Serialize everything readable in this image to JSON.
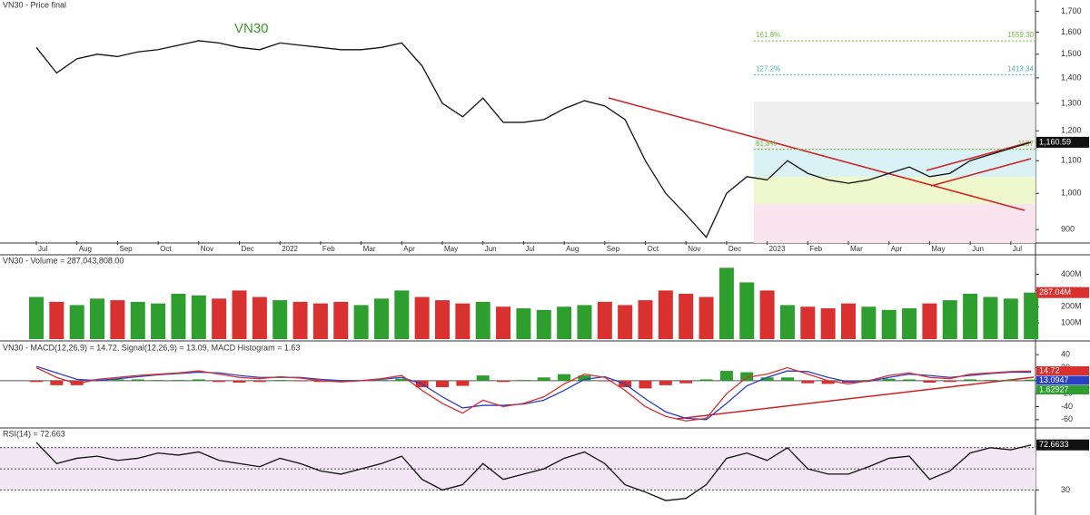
{
  "chart_data": [
    {
      "type": "line",
      "title": "VN30 - Price final",
      "annotation": "VN30",
      "log_scale": true,
      "color": "#111111",
      "categories": [
        "Jul",
        null,
        "Aug",
        null,
        "Sep",
        null,
        "Oct",
        null,
        "Nov",
        null,
        "Dec",
        null,
        "2022",
        null,
        "Feb",
        null,
        "Mar",
        null,
        "Apr",
        null,
        "May",
        null,
        "Jun",
        null,
        "Jul",
        null,
        "Aug",
        null,
        "Sep",
        null,
        "Oct",
        null,
        "Nov",
        null,
        "Dec",
        null,
        "2023",
        null,
        "Feb",
        null,
        "Mar",
        null,
        "Apr",
        null,
        "May",
        null,
        "Jun",
        null,
        "Jul",
        null
      ],
      "values": [
        1530,
        1420,
        1480,
        1500,
        1490,
        1510,
        1520,
        1540,
        1560,
        1550,
        1530,
        1520,
        1550,
        1540,
        1530,
        1520,
        1520,
        1530,
        1550,
        1450,
        1300,
        1250,
        1320,
        1230,
        1230,
        1240,
        1280,
        1310,
        1290,
        1240,
        1100,
        1000,
        940,
        880,
        1000,
        1050,
        1040,
        1100,
        1060,
        1040,
        1030,
        1040,
        1060,
        1080,
        1050,
        1060,
        1100,
        1120,
        1140,
        1160.59
      ],
      "ylim": [
        870,
        1720
      ],
      "yticks": [
        {
          "value": 900,
          "label": "900"
        },
        {
          "value": 1000,
          "label": "1,000"
        },
        {
          "value": 1100,
          "label": "1,100"
        },
        {
          "value": 1200,
          "label": "1,200"
        },
        {
          "value": 1300,
          "label": "1,300"
        },
        {
          "value": 1400,
          "label": "1,400"
        },
        {
          "value": 1500,
          "label": "1,500"
        },
        {
          "value": 1600,
          "label": "1,600"
        },
        {
          "value": 1700,
          "label": "1,700"
        }
      ],
      "last_label": {
        "value": 1160.59,
        "label": "1,160.59"
      },
      "fib_levels": [
        {
          "label": "161.8%",
          "value": 1559.3,
          "value_label": "1559.30",
          "color": "#6fbf3f"
        },
        {
          "label": "127.2%",
          "value": 1413.34,
          "value_label": "1413.34",
          "color": "#4fb8c8"
        },
        {
          "label": "61.8%",
          "value": 1137,
          "value_label": "1137",
          "color": "#6fbf3f"
        }
      ]
    },
    {
      "type": "bar",
      "title": "VN30 - Volume = 287,043,808.00",
      "up_color": "#2e9e2e",
      "down_color": "#d93030",
      "values": [
        260000000,
        230000000,
        210000000,
        250000000,
        240000000,
        230000000,
        220000000,
        280000000,
        270000000,
        250000000,
        300000000,
        260000000,
        240000000,
        230000000,
        220000000,
        230000000,
        210000000,
        250000000,
        300000000,
        260000000,
        240000000,
        220000000,
        230000000,
        200000000,
        190000000,
        180000000,
        200000000,
        210000000,
        230000000,
        210000000,
        240000000,
        300000000,
        280000000,
        260000000,
        440000000,
        350000000,
        300000000,
        210000000,
        200000000,
        190000000,
        220000000,
        200000000,
        180000000,
        190000000,
        220000000,
        240000000,
        280000000,
        260000000,
        250000000,
        287043808
      ],
      "ylim": [
        0,
        470000000
      ],
      "yticks": [
        {
          "value": 100000000,
          "label": "100M"
        },
        {
          "value": 200000000,
          "label": "200M"
        },
        {
          "value": 300000000,
          "label": "300M"
        },
        {
          "value": 400000000,
          "label": "400M"
        }
      ],
      "last_label": {
        "value": 287043808,
        "label": "287.04M"
      }
    },
    {
      "type": "macd",
      "title": "VN30 - MACD(12,26,9) = 14.72, Signal(12,26,9) = 13.09, MACD Histogram = 1.63",
      "series": [
        {
          "name": "MACD",
          "color": "#d93030",
          "values": [
            20,
            5,
            -5,
            2,
            5,
            8,
            10,
            12,
            15,
            10,
            5,
            3,
            6,
            4,
            0,
            -2,
            0,
            3,
            8,
            -15,
            -35,
            -50,
            -30,
            -40,
            -35,
            -25,
            -5,
            10,
            5,
            -15,
            -40,
            -55,
            -62,
            -58,
            -20,
            5,
            10,
            20,
            10,
            0,
            -5,
            0,
            8,
            12,
            5,
            3,
            10,
            12,
            14,
            14.72
          ]
        },
        {
          "name": "Signal",
          "color": "#2a3fc4",
          "values": [
            22,
            12,
            2,
            0,
            3,
            6,
            9,
            11,
            13,
            12,
            8,
            5,
            5,
            5,
            2,
            0,
            0,
            2,
            5,
            -5,
            -25,
            -42,
            -38,
            -38,
            -36,
            -30,
            -15,
            2,
            6,
            -5,
            -28,
            -48,
            -58,
            -60,
            -35,
            -8,
            5,
            15,
            14,
            5,
            -2,
            -1,
            5,
            10,
            8,
            5,
            8,
            11,
            13,
            13.09
          ]
        },
        {
          "name": "MACD Histogram",
          "color": "#2e9e2e",
          "down_color": "#d93030",
          "values": [
            -2,
            -7,
            -7,
            2,
            2,
            2,
            1,
            1,
            2,
            -2,
            -3,
            -2,
            1,
            -1,
            -2,
            -2,
            0,
            1,
            3,
            -10,
            -10,
            -8,
            8,
            -2,
            1,
            5,
            10,
            8,
            -1,
            -10,
            -12,
            -7,
            -4,
            2,
            15,
            13,
            5,
            5,
            -4,
            -5,
            -3,
            1,
            3,
            2,
            -3,
            -2,
            2,
            1,
            1,
            1.63
          ]
        }
      ],
      "ylim": [
        -70,
        50
      ],
      "yticks": [
        -60,
        -40,
        -20,
        0,
        20,
        40
      ],
      "last_labels": [
        {
          "value": 14.72,
          "label": "14.72",
          "color": "#d93030"
        },
        {
          "value": 13.0947,
          "label": "13.0947",
          "color": "#2a3fc4"
        },
        {
          "value": 1.62927,
          "label": "1.62927",
          "color": "#2e9e2e"
        }
      ]
    },
    {
      "type": "rsi",
      "title": "RSI(14) = 72.663",
      "color": "#111111",
      "band_color": "#f3e6f5",
      "values": [
        75,
        55,
        60,
        62,
        58,
        60,
        65,
        63,
        66,
        58,
        55,
        52,
        60,
        55,
        48,
        45,
        50,
        55,
        62,
        40,
        30,
        35,
        55,
        40,
        45,
        50,
        60,
        66,
        55,
        35,
        28,
        20,
        22,
        35,
        60,
        65,
        58,
        70,
        50,
        45,
        45,
        52,
        60,
        62,
        40,
        48,
        65,
        70,
        68,
        72.663
      ],
      "ylim": [
        8,
        87
      ],
      "yticks": [
        30
      ],
      "levels": [
        30,
        50,
        70
      ],
      "last_label": {
        "value": 72.6633,
        "label": "72.6633"
      }
    }
  ]
}
